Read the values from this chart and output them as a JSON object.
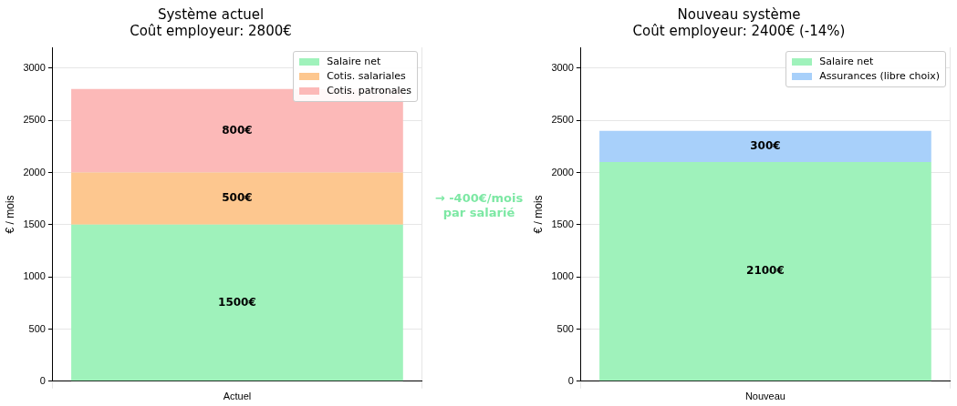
{
  "chart_data": [
    {
      "type": "bar",
      "title": "Système actuel",
      "subtitle": "Coût employeur: 2800€",
      "ylabel": "€ / mois",
      "categories": [
        "Actuel"
      ],
      "stacked": true,
      "series": [
        {
          "name": "Salaire net",
          "color": "#9ff2bb",
          "values": [
            1500
          ],
          "value_labels": [
            "1500€"
          ]
        },
        {
          "name": "Cotis. salariales",
          "color": "#fdc78f",
          "values": [
            500
          ],
          "value_labels": [
            "500€"
          ]
        },
        {
          "name": "Cotis. patronales",
          "color": "#fcb9b8",
          "values": [
            800
          ],
          "value_labels": [
            "800€"
          ]
        }
      ],
      "ylim": [
        0,
        3200
      ],
      "yticks": [
        0,
        500,
        1000,
        1500,
        2000,
        2500,
        3000
      ],
      "grid": true,
      "legend": "top right",
      "annotations": [
        "→ -400€/mois\npar salarié"
      ]
    },
    {
      "type": "bar",
      "title": "Nouveau système",
      "subtitle": "Coût employeur: 2400€ (-14%)",
      "ylabel": "€ / mois",
      "categories": [
        "Nouveau"
      ],
      "stacked": true,
      "series": [
        {
          "name": "Salaire net",
          "color": "#9ff2bb",
          "values": [
            2100
          ],
          "value_labels": [
            "2100€"
          ]
        },
        {
          "name": "Assurances (libre choix)",
          "color": "#a8d0fa",
          "values": [
            300
          ],
          "value_labels": [
            "300€"
          ]
        }
      ],
      "ylim": [
        0,
        3200
      ],
      "yticks": [
        0,
        500,
        1000,
        1500,
        2000,
        2500,
        3000
      ],
      "grid": true,
      "legend": "top right"
    }
  ]
}
